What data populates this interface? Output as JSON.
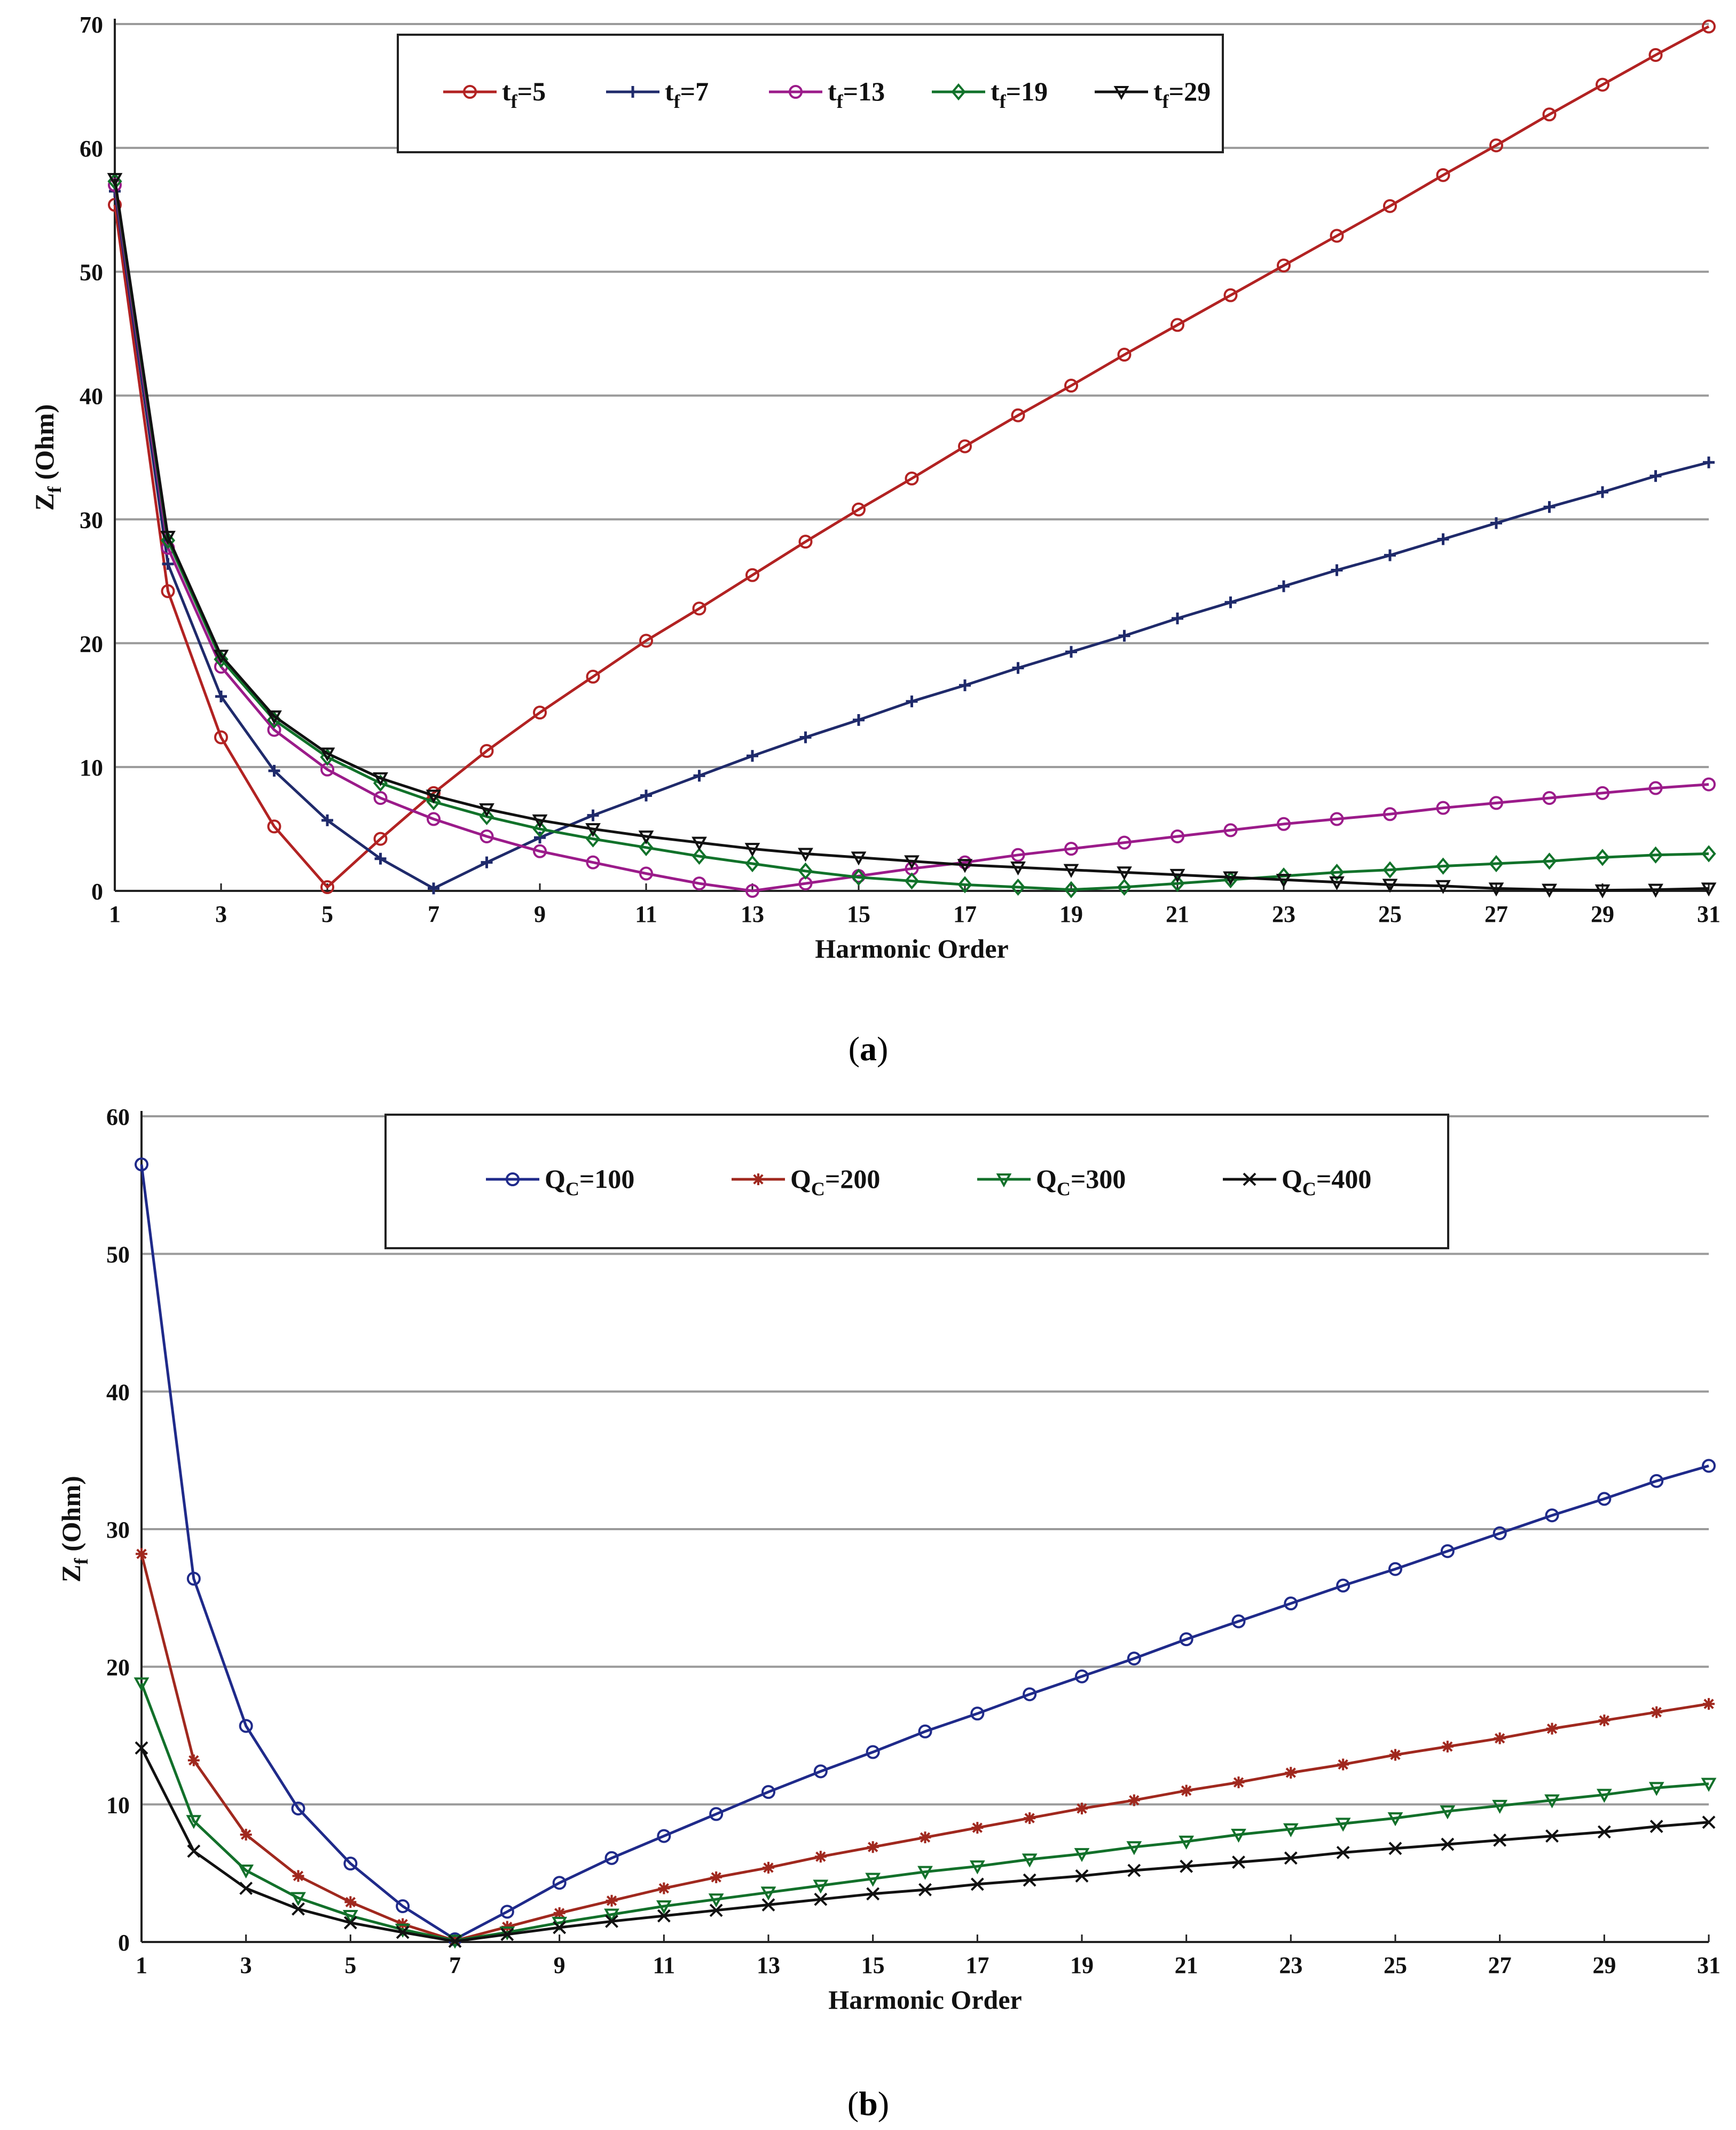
{
  "chart_data": [
    {
      "type": "line",
      "caption_letter": "a",
      "xlabel": "Harmonic Order",
      "ylabel_main": "Z",
      "ylabel_sub": "f",
      "ylabel_rest": " (Ohm)",
      "xlim": [
        1,
        31
      ],
      "ylim": [
        0,
        70
      ],
      "xticks": [
        1,
        3,
        5,
        7,
        9,
        11,
        13,
        15,
        17,
        19,
        21,
        23,
        25,
        27,
        29,
        31
      ],
      "yticks": [
        0,
        10,
        20,
        30,
        40,
        50,
        60,
        70
      ],
      "grid": "horizontal",
      "legend_position": "top-center",
      "x": [
        1,
        2,
        3,
        4,
        5,
        6,
        7,
        8,
        9,
        10,
        11,
        12,
        13,
        14,
        15,
        16,
        17,
        18,
        19,
        20,
        21,
        22,
        23,
        24,
        25,
        26,
        27,
        28,
        29,
        30,
        31
      ],
      "series": [
        {
          "label_main": "t",
          "label_sub": "f",
          "label_rest": "=5",
          "color": "#b22222",
          "marker": "circle",
          "values": [
            55.4,
            24.2,
            12.4,
            5.2,
            0.3,
            4.2,
            7.9,
            11.3,
            14.4,
            17.3,
            20.2,
            22.8,
            25.5,
            28.2,
            30.8,
            33.3,
            35.9,
            38.4,
            40.8,
            43.3,
            45.7,
            48.1,
            50.5,
            52.9,
            55.3,
            57.8,
            60.2,
            62.7,
            65.1,
            67.5,
            69.8
          ]
        },
        {
          "label_main": "t",
          "label_sub": "f",
          "label_rest": "=7",
          "color": "#1f2a6b",
          "marker": "plus",
          "values": [
            56.5,
            26.4,
            15.7,
            9.7,
            5.7,
            2.6,
            0.2,
            2.3,
            4.3,
            6.1,
            7.7,
            9.3,
            10.9,
            12.4,
            13.8,
            15.3,
            16.6,
            18.0,
            19.3,
            20.6,
            22.0,
            23.3,
            24.6,
            25.9,
            27.1,
            28.4,
            29.7,
            31.0,
            32.2,
            33.5,
            34.6
          ]
        },
        {
          "label_main": "t",
          "label_sub": "f",
          "label_rest": "=13",
          "color": "#9b1b8a",
          "marker": "circle",
          "values": [
            57.0,
            27.7,
            18.1,
            13.0,
            9.8,
            7.5,
            5.8,
            4.4,
            3.2,
            2.3,
            1.4,
            0.6,
            0.0,
            0.6,
            1.2,
            1.8,
            2.3,
            2.9,
            3.4,
            3.9,
            4.4,
            4.9,
            5.4,
            5.8,
            6.2,
            6.7,
            7.1,
            7.5,
            7.9,
            8.3,
            8.6
          ]
        },
        {
          "label_main": "t",
          "label_sub": "f",
          "label_rest": "=19",
          "color": "#11722a",
          "marker": "diamond",
          "values": [
            57.3,
            28.3,
            18.7,
            13.8,
            10.8,
            8.7,
            7.2,
            6.0,
            5.0,
            4.2,
            3.5,
            2.8,
            2.2,
            1.6,
            1.1,
            0.8,
            0.5,
            0.3,
            0.1,
            0.3,
            0.6,
            0.9,
            1.2,
            1.5,
            1.7,
            2.0,
            2.2,
            2.4,
            2.7,
            2.9,
            3.0
          ]
        },
        {
          "label_main": "t",
          "label_sub": "f",
          "label_rest": "=29",
          "color": "#111111",
          "marker": "triangle-down",
          "values": [
            57.5,
            28.6,
            19.0,
            14.1,
            11.1,
            9.1,
            7.7,
            6.6,
            5.7,
            5.0,
            4.4,
            3.9,
            3.4,
            3.0,
            2.7,
            2.4,
            2.1,
            1.9,
            1.7,
            1.5,
            1.3,
            1.1,
            0.9,
            0.7,
            0.5,
            0.4,
            0.2,
            0.1,
            0.05,
            0.1,
            0.2
          ]
        }
      ]
    },
    {
      "type": "line",
      "caption_letter": "b",
      "xlabel": "Harmonic Order",
      "ylabel_main": "Z",
      "ylabel_sub": "f",
      "ylabel_rest": " (Ohm)",
      "xlim": [
        1,
        31
      ],
      "ylim": [
        0,
        60
      ],
      "xticks": [
        1,
        3,
        5,
        7,
        9,
        11,
        13,
        15,
        17,
        19,
        21,
        23,
        25,
        27,
        29,
        31
      ],
      "yticks": [
        0,
        10,
        20,
        30,
        40,
        50,
        60
      ],
      "grid": "horizontal",
      "legend_position": "top-center",
      "x": [
        1,
        2,
        3,
        4,
        5,
        6,
        7,
        8,
        9,
        10,
        11,
        12,
        13,
        14,
        15,
        16,
        17,
        18,
        19,
        20,
        21,
        22,
        23,
        24,
        25,
        26,
        27,
        28,
        29,
        30,
        31
      ],
      "series": [
        {
          "label_main": "Q",
          "label_sub": "C",
          "label_rest": "=100",
          "color": "#1f2a8a",
          "marker": "circle",
          "values": [
            56.5,
            26.4,
            15.7,
            9.7,
            5.7,
            2.6,
            0.2,
            2.2,
            4.3,
            6.1,
            7.7,
            9.3,
            10.9,
            12.4,
            13.8,
            15.3,
            16.6,
            18.0,
            19.3,
            20.6,
            22.0,
            23.3,
            24.6,
            25.9,
            27.1,
            28.4,
            29.7,
            31.0,
            32.2,
            33.5,
            34.6
          ]
        },
        {
          "label_main": "Q",
          "label_sub": "C",
          "label_rest": "=200",
          "color": "#a0281e",
          "marker": "star",
          "values": [
            28.2,
            13.2,
            7.8,
            4.8,
            2.9,
            1.3,
            0.1,
            1.1,
            2.1,
            3.0,
            3.9,
            4.7,
            5.4,
            6.2,
            6.9,
            7.6,
            8.3,
            9.0,
            9.7,
            10.3,
            11.0,
            11.6,
            12.3,
            12.9,
            13.6,
            14.2,
            14.8,
            15.5,
            16.1,
            16.7,
            17.3
          ]
        },
        {
          "label_main": "Q",
          "label_sub": "C",
          "label_rest": "=300",
          "color": "#12702a",
          "marker": "triangle-down",
          "values": [
            18.8,
            8.8,
            5.2,
            3.2,
            1.9,
            0.9,
            0.1,
            0.7,
            1.4,
            2.0,
            2.6,
            3.1,
            3.6,
            4.1,
            4.6,
            5.1,
            5.5,
            6.0,
            6.4,
            6.9,
            7.3,
            7.8,
            8.2,
            8.6,
            9.0,
            9.5,
            9.9,
            10.3,
            10.7,
            11.2,
            11.5
          ]
        },
        {
          "label_main": "Q",
          "label_sub": "C",
          "label_rest": "=400",
          "color": "#111111",
          "marker": "x",
          "values": [
            14.1,
            6.6,
            3.9,
            2.4,
            1.4,
            0.7,
            0.05,
            0.55,
            1.05,
            1.5,
            1.9,
            2.3,
            2.7,
            3.1,
            3.5,
            3.8,
            4.2,
            4.5,
            4.8,
            5.2,
            5.5,
            5.8,
            6.1,
            6.5,
            6.8,
            7.1,
            7.4,
            7.7,
            8.0,
            8.4,
            8.7
          ]
        }
      ]
    }
  ]
}
